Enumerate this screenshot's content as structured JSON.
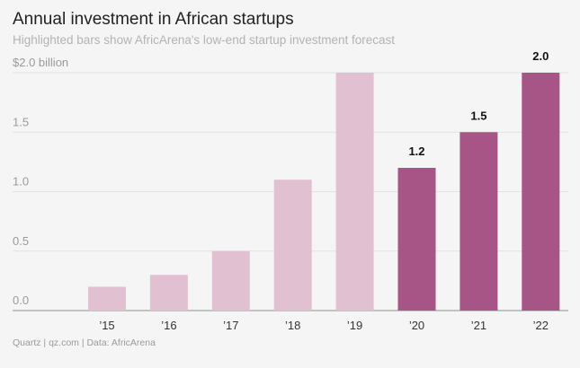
{
  "title": "Annual investment in African startups",
  "subtitle": "Highlighted bars show AfricArena's low-end startup investment forecast",
  "footer": "Quartz | qz.com | Data: AfricArena",
  "colors": {
    "actual": "#e1c0d1",
    "forecast": "#a65586",
    "gridline": "#e2e2e2",
    "baseline": "#8e8e8e"
  },
  "chart_data": {
    "type": "bar",
    "title": "Annual investment in African startups",
    "subtitle": "Highlighted bars show AfricArena's low-end startup investment forecast",
    "categories": [
      "’15",
      "’16",
      "’17",
      "’18",
      "’19",
      "’20",
      "’21",
      "’22"
    ],
    "values": [
      0.2,
      0.3,
      0.5,
      1.1,
      2.0,
      1.2,
      1.5,
      2.0
    ],
    "highlighted": [
      false,
      false,
      false,
      false,
      false,
      true,
      true,
      true
    ],
    "data_labels": [
      "",
      "",
      "",
      "",
      "",
      "1.2",
      "1.5",
      "2.0"
    ],
    "y_ticks": [
      0,
      0.5,
      1.0,
      1.5,
      2.0
    ],
    "y_tick_labels": [
      "0.0",
      "0.5",
      "1.0",
      "1.5",
      "$2.0 billion"
    ],
    "ylim": [
      0,
      2.0
    ],
    "xlabel": "",
    "ylabel": "",
    "grid": true,
    "legend": "none"
  }
}
